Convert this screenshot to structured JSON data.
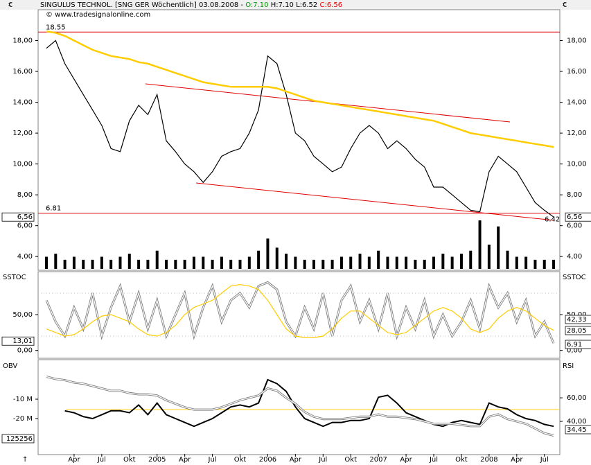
{
  "header": {
    "title": "SINGULUS TECHNOL. [SNG GER  Wöchentlich] 03.08.2008 -",
    "open": "O:7.10",
    "hl": "H:7.10 L:6.52",
    "close": "C:6.56",
    "copyright": "© www.tradesignalonline.com",
    "currency": "€"
  },
  "chart_data": [
    {
      "type": "line",
      "name": "price",
      "categories": [
        null,
        null,
        null,
        "Apr",
        null,
        null,
        "Jul",
        null,
        null,
        "Okt",
        null,
        null,
        "2005",
        null,
        null,
        "Apr",
        null,
        null,
        "Jul",
        null,
        null,
        "Okt",
        null,
        null,
        "2006",
        null,
        null,
        "Apr",
        null,
        null,
        "Jul",
        null,
        null,
        "Okt",
        null,
        null,
        "2007",
        null,
        null,
        "Apr",
        null,
        null,
        "Jul",
        null,
        null,
        "Okt",
        null,
        null,
        "2008",
        null,
        null,
        "Apr",
        null,
        null,
        "Jul",
        null
      ],
      "series": [
        {
          "name": "Close",
          "color": "#000000",
          "values": [
            17.5,
            18.0,
            16.5,
            15.5,
            14.5,
            13.5,
            12.5,
            11.0,
            10.8,
            12.8,
            13.8,
            13.2,
            14.5,
            11.5,
            10.8,
            10.0,
            9.5,
            8.8,
            9.5,
            10.5,
            10.8,
            11.0,
            12.0,
            13.5,
            17.0,
            16.5,
            14.5,
            12.0,
            11.5,
            10.5,
            10.0,
            9.5,
            9.8,
            11.0,
            12.0,
            12.5,
            12.0,
            11.0,
            11.5,
            11.0,
            10.3,
            9.8,
            8.5,
            8.5,
            8.0,
            7.5,
            7.0,
            6.9,
            9.5,
            10.5,
            10.0,
            9.5,
            8.5,
            7.5,
            7.0,
            6.56
          ]
        },
        {
          "name": "MA",
          "color": "#ffcc00",
          "values": [
            18.6,
            18.5,
            18.3,
            18.0,
            17.7,
            17.4,
            17.2,
            17.0,
            16.9,
            16.8,
            16.6,
            16.5,
            16.3,
            16.1,
            15.9,
            15.7,
            15.5,
            15.3,
            15.2,
            15.1,
            15.0,
            15.0,
            15.0,
            15.0,
            15.0,
            14.9,
            14.7,
            14.5,
            14.3,
            14.1,
            14.0,
            13.9,
            13.8,
            13.7,
            13.6,
            13.5,
            13.4,
            13.3,
            13.2,
            13.1,
            13.0,
            12.9,
            12.8,
            12.6,
            12.4,
            12.2,
            12.0,
            11.9,
            11.8,
            11.7,
            11.6,
            11.5,
            11.4,
            11.3,
            11.2,
            11.1
          ]
        }
      ],
      "volume": [
        4,
        5,
        3,
        4,
        3,
        3,
        4,
        3,
        4,
        5,
        3,
        3,
        6,
        3,
        3,
        3,
        4,
        4,
        3,
        4,
        3,
        3,
        4,
        6,
        10,
        7,
        5,
        4,
        3,
        3,
        3,
        3,
        4,
        4,
        5,
        4,
        6,
        4,
        4,
        4,
        3,
        3,
        4,
        5,
        4,
        5,
        6,
        16,
        8,
        14,
        6,
        4,
        4,
        3,
        3,
        3
      ],
      "ylim": [
        3.2,
        20.0
      ],
      "yticks": [
        {
          "value": 4,
          "label": "4,00"
        },
        {
          "value": 6,
          "label": "6,00"
        },
        {
          "value": 8,
          "label": "8,00"
        },
        {
          "value": 10,
          "label": "10,00"
        },
        {
          "value": 12,
          "label": "12,00"
        },
        {
          "value": 14,
          "label": "14,00"
        },
        {
          "value": 16,
          "label": "16,00"
        },
        {
          "value": 18,
          "label": "18,00"
        }
      ],
      "hlines": [
        18.55,
        6.81
      ],
      "low": 6.42,
      "last_label": "6,56"
    },
    {
      "type": "line",
      "name": "SSTOC",
      "series": [
        {
          "name": "Stoch",
          "color": "#ffffff",
          "values": [
            70,
            40,
            20,
            60,
            30,
            80,
            20,
            60,
            90,
            40,
            80,
            30,
            70,
            20,
            50,
            80,
            20,
            60,
            90,
            40,
            70,
            80,
            60,
            90,
            95,
            85,
            40,
            20,
            60,
            30,
            80,
            20,
            70,
            90,
            40,
            70,
            30,
            80,
            20,
            60,
            30,
            70,
            20,
            50,
            20,
            40,
            70,
            30,
            90,
            60,
            80,
            40,
            70,
            20,
            40,
            10
          ]
        },
        {
          "name": "Signal",
          "color": "#ffcc00",
          "values": [
            30,
            25,
            20,
            22,
            30,
            40,
            48,
            50,
            45,
            40,
            30,
            22,
            20,
            25,
            35,
            50,
            60,
            65,
            70,
            80,
            90,
            92,
            90,
            85,
            70,
            50,
            30,
            20,
            18,
            18,
            20,
            30,
            45,
            55,
            55,
            45,
            35,
            25,
            22,
            25,
            35,
            45,
            55,
            60,
            55,
            45,
            30,
            25,
            30,
            45,
            55,
            60,
            55,
            45,
            35,
            28
          ]
        }
      ],
      "ylim": [
        -10,
        110
      ],
      "yticks": [
        {
          "value": 0,
          "label": "0,00"
        },
        {
          "value": 50,
          "label": "50,00"
        }
      ],
      "levels": [
        20,
        80
      ],
      "left_label": "13,01",
      "right_labels": [
        "42,33",
        "28,05",
        "6,91"
      ],
      "label_left": "SSTOC",
      "label_right": "SSTOC"
    },
    {
      "type": "line",
      "name": "OBV",
      "series": [
        {
          "name": "OBV",
          "color": "#000000",
          "values": [
            null,
            null,
            -16,
            -17,
            -19,
            -20,
            -18,
            -16,
            -16,
            -17,
            -13,
            -18,
            -12,
            -18,
            -20,
            -22,
            -24,
            -22,
            -20,
            -17,
            -14,
            -13,
            -14,
            -12,
            0,
            -2,
            -6,
            -14,
            -20,
            -22,
            -24,
            -22,
            -22,
            -21,
            -21,
            -20,
            -9,
            -8,
            -12,
            -17,
            -19,
            -21,
            -23,
            -24,
            -22,
            -21,
            -22,
            -23,
            -12,
            -14,
            -15,
            -18,
            -20,
            -21,
            -23,
            -24
          ]
        },
        {
          "name": "RSI",
          "color": "#ffffff",
          "axis": "y2",
          "values": [
            78,
            76,
            75,
            73,
            72,
            70,
            68,
            66,
            66,
            64,
            63,
            63,
            62,
            58,
            55,
            52,
            50,
            50,
            50,
            52,
            55,
            58,
            60,
            62,
            68,
            66,
            60,
            55,
            48,
            44,
            42,
            42,
            42,
            43,
            44,
            44,
            46,
            44,
            44,
            43,
            42,
            40,
            38,
            38,
            38,
            37,
            36,
            36,
            44,
            46,
            42,
            40,
            38,
            34,
            30,
            28
          ]
        }
      ],
      "ylim": [
        -38.2,
        10
      ],
      "yticks": [
        {
          "value": -10,
          "label": "-10 M"
        },
        {
          "value": -20,
          "label": "-20 M"
        }
      ],
      "y2lim": [
        12.4,
        91.8
      ],
      "y2ticks": [
        {
          "value": 40,
          "label": "40,00"
        },
        {
          "value": 60,
          "label": "60,00"
        }
      ],
      "level": 50,
      "left_label": "125256",
      "right_label": "34,45",
      "label_left": "OBV",
      "label_right": "RSI"
    }
  ]
}
